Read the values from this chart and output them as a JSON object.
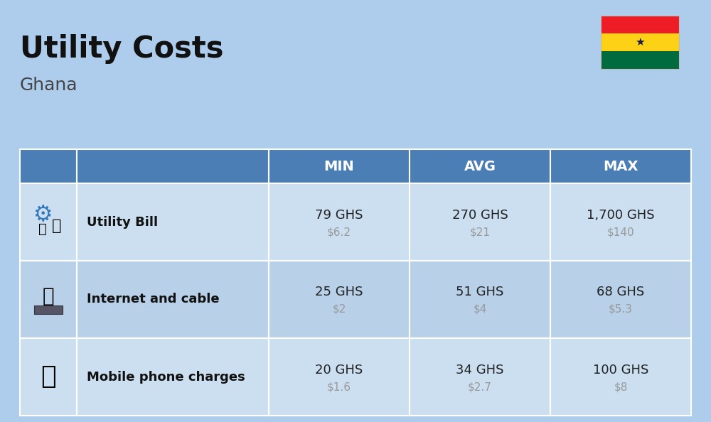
{
  "title": "Utility Costs",
  "subtitle": "Ghana",
  "background_color": "#aecceb",
  "header_bg_color": "#4a7eb5",
  "header_text_color": "#ffffff",
  "row_bg_color_odd": "#ccdff0",
  "row_bg_color_even": "#b8d0e8",
  "table_border_color": "#ffffff",
  "rows": [
    {
      "label": "Utility Bill",
      "icon": "utility",
      "min_ghs": "79 GHS",
      "min_usd": "$6.2",
      "avg_ghs": "270 GHS",
      "avg_usd": "$21",
      "max_ghs": "1,700 GHS",
      "max_usd": "$140"
    },
    {
      "label": "Internet and cable",
      "icon": "internet",
      "min_ghs": "25 GHS",
      "min_usd": "$2",
      "avg_ghs": "51 GHS",
      "avg_usd": "$4",
      "max_ghs": "68 GHS",
      "max_usd": "$5.3"
    },
    {
      "label": "Mobile phone charges",
      "icon": "mobile",
      "min_ghs": "20 GHS",
      "min_usd": "$1.6",
      "avg_ghs": "34 GHS",
      "avg_usd": "$2.7",
      "max_ghs": "100 GHS",
      "max_usd": "$8"
    }
  ],
  "col_headers": [
    "MIN",
    "AVG",
    "MAX"
  ],
  "flag_colors": [
    "#ee1c25",
    "#fcd116",
    "#006b3f"
  ],
  "flag_star_color": "#1a1a4a",
  "usd_color": "#999999",
  "ghs_color": "#222222",
  "label_color": "#111111",
  "title_fontsize": 30,
  "subtitle_fontsize": 18,
  "header_fontsize": 14,
  "label_fontsize": 13,
  "value_fontsize": 13,
  "usd_fontsize": 11
}
